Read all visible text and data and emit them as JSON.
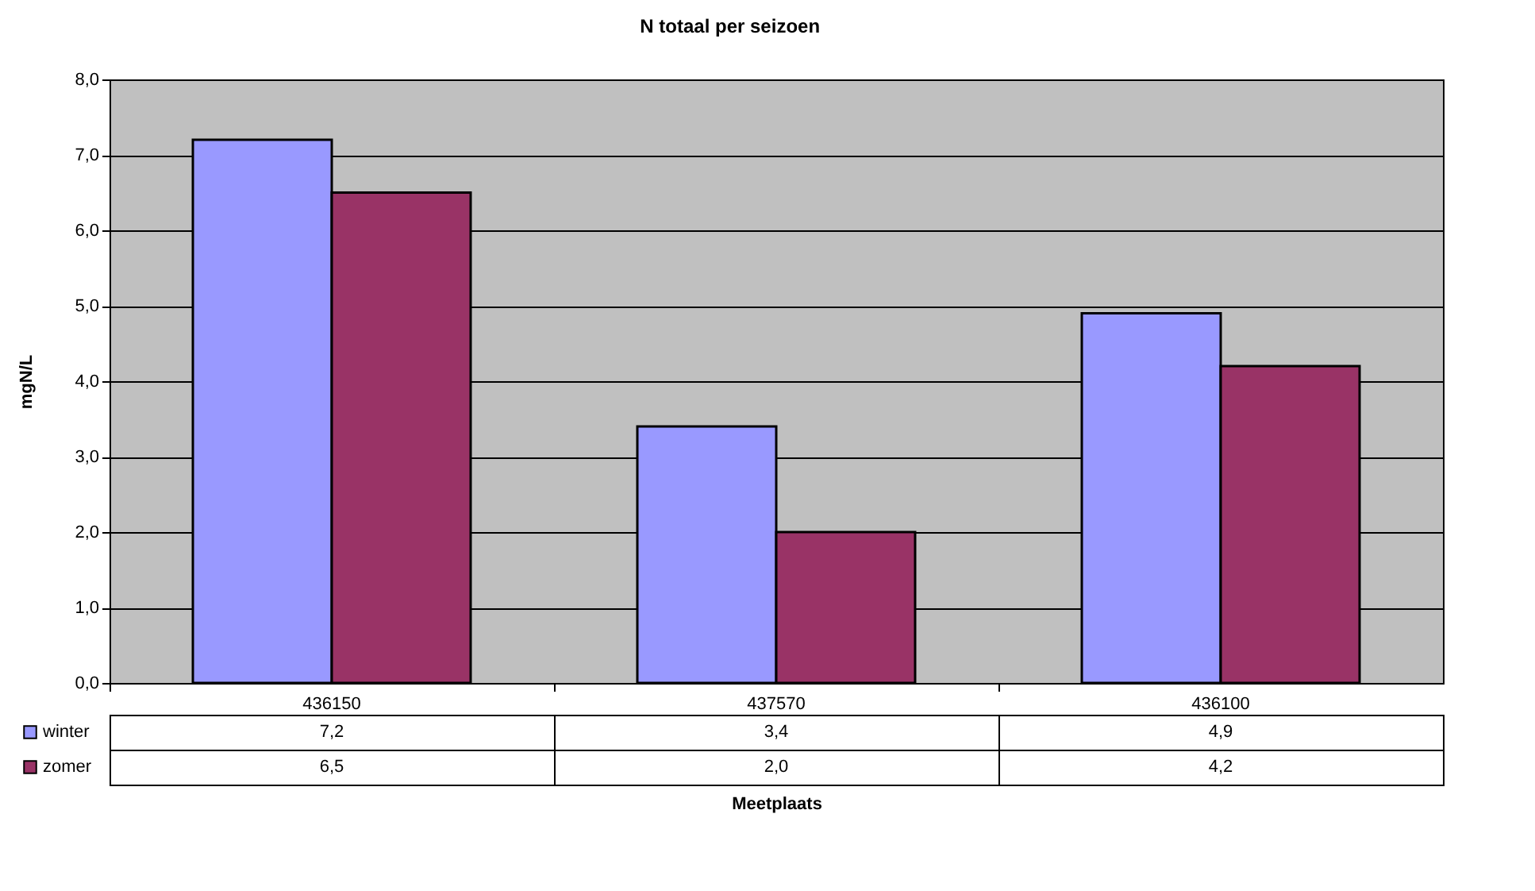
{
  "chart_data": {
    "type": "bar",
    "title": "N totaal per seizoen",
    "xlabel": "Meetplaats",
    "ylabel": "mgN/L",
    "categories": [
      "436150",
      "437570",
      "436100"
    ],
    "series": [
      {
        "name": "winter",
        "color": "#9999ff",
        "values": [
          7.2,
          3.4,
          4.9
        ],
        "value_labels": [
          "7,2",
          "3,4",
          "4,9"
        ]
      },
      {
        "name": "zomer",
        "color": "#993366",
        "values": [
          6.5,
          2.0,
          4.2
        ],
        "value_labels": [
          "6,5",
          "2,0",
          "4,2"
        ]
      }
    ],
    "ylim": [
      0,
      8
    ],
    "yticks": [
      {
        "value": 0,
        "label": "0,0"
      },
      {
        "value": 1,
        "label": "1,0"
      },
      {
        "value": 2,
        "label": "2,0"
      },
      {
        "value": 3,
        "label": "3,0"
      },
      {
        "value": 4,
        "label": "4,0"
      },
      {
        "value": 5,
        "label": "5,0"
      },
      {
        "value": 6,
        "label": "6,0"
      },
      {
        "value": 7,
        "label": "7,0"
      },
      {
        "value": 8,
        "label": "8,0"
      }
    ],
    "grid": "y",
    "legend": "bottom"
  }
}
